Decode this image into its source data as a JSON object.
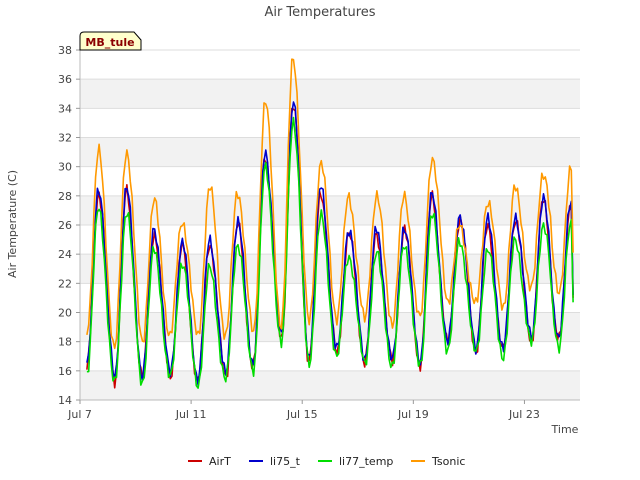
{
  "chart_data": {
    "type": "line",
    "title": "Air Temperatures",
    "xlabel": "Time",
    "ylabel": "Air Temperature (C)",
    "site_tag": "MB_tule",
    "ylim": [
      14,
      38
    ],
    "yticks": [
      14,
      16,
      18,
      20,
      22,
      24,
      26,
      28,
      30,
      32,
      34,
      36,
      38
    ],
    "xlim_days": [
      7,
      25
    ],
    "xticks": [
      {
        "day": 7,
        "label": "Jul 7"
      },
      {
        "day": 11,
        "label": "Jul 11"
      },
      {
        "day": 15,
        "label": "Jul 15"
      },
      {
        "day": 19,
        "label": "Jul 19"
      },
      {
        "day": 23,
        "label": "Jul 23"
      }
    ],
    "grid": true,
    "legend_position": "bottom",
    "series": [
      {
        "name": "AirT",
        "color": "#cc0000",
        "daily_minmax": [
          [
            16.5,
            28.3
          ],
          [
            15.3,
            28.2
          ],
          [
            15.5,
            25.5
          ],
          [
            15.7,
            24.5
          ],
          [
            15.3,
            24.8
          ],
          [
            15.4,
            26.0
          ],
          [
            15.8,
            30.8
          ],
          [
            18.5,
            34.2
          ],
          [
            16.6,
            28.2
          ],
          [
            17.2,
            25.5
          ],
          [
            16.8,
            25.3
          ],
          [
            16.6,
            25.8
          ],
          [
            16.1,
            27.9
          ],
          [
            17.8,
            26.5
          ],
          [
            17.5,
            25.8
          ],
          [
            17.1,
            26.5
          ],
          [
            18.1,
            27.6
          ]
        ],
        "end": 21.0
      },
      {
        "name": "li75_t",
        "color": "#0000cc",
        "daily_minmax": [
          [
            16.7,
            28.6
          ],
          [
            15.5,
            28.5
          ],
          [
            15.6,
            25.8
          ],
          [
            15.9,
            24.8
          ],
          [
            15.5,
            25.0
          ],
          [
            15.6,
            26.3
          ],
          [
            16.0,
            30.9
          ],
          [
            18.7,
            34.6
          ],
          [
            16.9,
            28.6
          ],
          [
            17.4,
            25.8
          ],
          [
            17.0,
            25.6
          ],
          [
            16.8,
            26.0
          ],
          [
            16.3,
            28.0
          ],
          [
            18.0,
            26.8
          ],
          [
            17.7,
            26.3
          ],
          [
            17.3,
            26.7
          ],
          [
            18.3,
            27.7
          ]
        ],
        "end": 21.2
      },
      {
        "name": "li77_temp",
        "color": "#00dd00",
        "daily_minmax": [
          [
            16.2,
            27.2
          ],
          [
            14.9,
            27.0
          ],
          [
            15.2,
            24.3
          ],
          [
            15.5,
            23.5
          ],
          [
            15.1,
            23.0
          ],
          [
            15.2,
            24.8
          ],
          [
            15.5,
            29.8
          ],
          [
            18.2,
            33.3
          ],
          [
            16.4,
            26.5
          ],
          [
            17.0,
            24.0
          ],
          [
            16.6,
            24.0
          ],
          [
            16.4,
            24.8
          ],
          [
            15.9,
            26.7
          ],
          [
            17.5,
            25.0
          ],
          [
            17.3,
            24.3
          ],
          [
            16.8,
            25.0
          ],
          [
            17.8,
            26.0
          ]
        ],
        "end": 20.7
      },
      {
        "name": "Tsonic",
        "color": "#ff9900",
        "daily_minmax": [
          [
            19.5,
            31.0
          ],
          [
            17.2,
            31.2
          ],
          [
            18.0,
            27.6
          ],
          [
            18.2,
            26.4
          ],
          [
            18.5,
            28.5
          ],
          [
            18.3,
            28.4
          ],
          [
            18.5,
            34.4
          ],
          [
            19.0,
            37.6
          ],
          [
            19.2,
            30.2
          ],
          [
            19.7,
            28.0
          ],
          [
            19.5,
            28.0
          ],
          [
            19.4,
            28.0
          ],
          [
            19.0,
            30.6
          ],
          [
            21.0,
            25.9
          ],
          [
            20.5,
            27.7
          ],
          [
            20.2,
            28.5
          ],
          [
            21.5,
            29.7
          ]
        ],
        "end": 24.1
      }
    ]
  }
}
